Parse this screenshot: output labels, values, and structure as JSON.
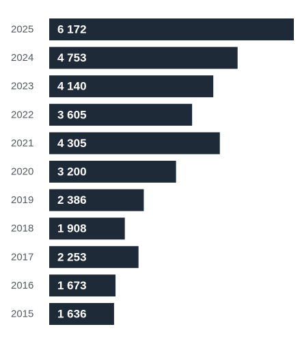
{
  "chart_data": {
    "type": "bar",
    "orientation": "horizontal",
    "categories": [
      "2025",
      "2024",
      "2023",
      "2022",
      "2021",
      "2020",
      "2019",
      "2018",
      "2017",
      "2016",
      "2015"
    ],
    "values": [
      6172,
      4753,
      4140,
      3605,
      4305,
      3200,
      2386,
      1908,
      2253,
      1673,
      1636
    ],
    "value_labels": [
      "6 172",
      "4 753",
      "4 140",
      "3 605",
      "4 305",
      "3 200",
      "2 386",
      "1 908",
      "2 253",
      "1 673",
      "1 636"
    ],
    "xlim": [
      0,
      6172
    ],
    "grid": false,
    "legend": "none",
    "bar_color": "#1f2a38",
    "label_color": "#ffffff",
    "category_color": "#555b61"
  }
}
